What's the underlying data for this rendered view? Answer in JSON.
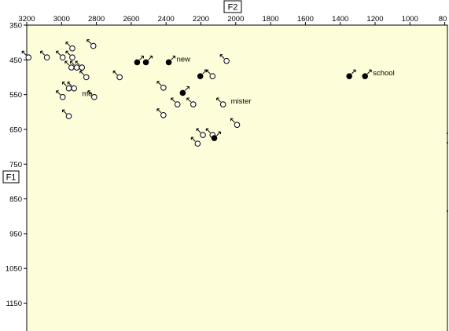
{
  "chart_data": {
    "type": "scatter",
    "title": "",
    "xlabel": "F2",
    "ylabel": "F1",
    "xlim": [
      3200,
      800
    ],
    "ylim": [
      350,
      1230
    ],
    "x_reversed": true,
    "y_reversed": true,
    "grid": false,
    "background": "#fdfdd9",
    "x_ticks": [
      "3200",
      "3000",
      "2800",
      "2600",
      "2400",
      "2200",
      "2000",
      "1800",
      "1600",
      "1400",
      "1200",
      "1000",
      "80"
    ],
    "y_ticks": [
      "350",
      "450",
      "550",
      "650",
      "750",
      "850",
      "950",
      "1050",
      "1150"
    ],
    "series": [
      {
        "marker": "open-circle",
        "points": [
          {
            "x": 3190,
            "y": 443
          },
          {
            "x": 3085,
            "y": 443
          },
          {
            "x": 2995,
            "y": 443
          },
          {
            "x": 2940,
            "y": 443
          },
          {
            "x": 2940,
            "y": 417
          },
          {
            "x": 2820,
            "y": 410
          },
          {
            "x": 2945,
            "y": 472
          },
          {
            "x": 2915,
            "y": 472
          },
          {
            "x": 2885,
            "y": 472
          },
          {
            "x": 2860,
            "y": 500
          },
          {
            "x": 2670,
            "y": 500
          },
          {
            "x": 2960,
            "y": 532
          },
          {
            "x": 2930,
            "y": 532
          },
          {
            "x": 2995,
            "y": 557
          },
          {
            "x": 2815,
            "y": 557
          },
          {
            "x": 2960,
            "y": 612
          },
          {
            "x": 2420,
            "y": 530
          },
          {
            "x": 2420,
            "y": 609
          },
          {
            "x": 2340,
            "y": 578
          },
          {
            "x": 2250,
            "y": 578
          },
          {
            "x": 2140,
            "y": 497
          },
          {
            "x": 2060,
            "y": 453
          },
          {
            "x": 2080,
            "y": 578
          },
          {
            "x": 2000,
            "y": 637
          },
          {
            "x": 2195,
            "y": 666
          },
          {
            "x": 2140,
            "y": 666
          },
          {
            "x": 2225,
            "y": 691
          }
        ]
      },
      {
        "marker": "filled-circle",
        "points": [
          {
            "x": 2570,
            "y": 457
          },
          {
            "x": 2520,
            "y": 457
          },
          {
            "x": 2390,
            "y": 457
          },
          {
            "x": 2210,
            "y": 497
          },
          {
            "x": 2310,
            "y": 545
          },
          {
            "x": 2130,
            "y": 675
          },
          {
            "x": 1360,
            "y": 497
          },
          {
            "x": 1270,
            "y": 497
          }
        ]
      }
    ],
    "annotations": [
      {
        "text": "new",
        "x": 2390,
        "y": 457
      },
      {
        "text": "school",
        "x": 1270,
        "y": 497
      },
      {
        "text": "mister",
        "x": 2080,
        "y": 578
      },
      {
        "text": "me",
        "x": 2930,
        "y": 557
      }
    ]
  }
}
